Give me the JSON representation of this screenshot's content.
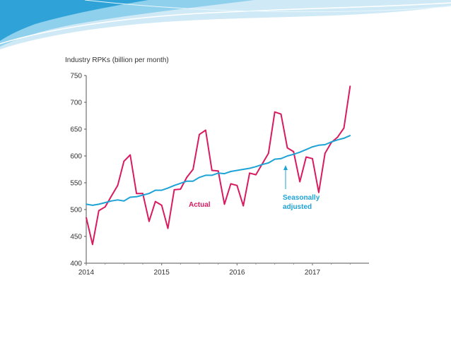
{
  "colors": {
    "actual": "#d81b60",
    "seasonally_adjusted": "#1ea3d6",
    "swoosh_light": "#cfeaf6",
    "swoosh_mid": "#8fd0ec",
    "swoosh_dark": "#2fa3d7"
  },
  "chart_data": {
    "type": "line",
    "title": "Industry RPKs (billion per month)",
    "xlabel": "",
    "ylabel": "",
    "xlim": [
      2014.0,
      2017.75
    ],
    "ylim": [
      400,
      750
    ],
    "x_ticks": [
      "2014",
      "2015",
      "2016",
      "2017"
    ],
    "y_ticks": [
      "750",
      "700",
      "650",
      "600",
      "550",
      "500",
      "450",
      "400"
    ],
    "grid": false,
    "annotations": {
      "actual": "Actual",
      "seasonally_adjusted_line1": "Seasonally",
      "seasonally_adjusted_line2": "adjusted"
    },
    "series": [
      {
        "key": "actual",
        "x": [
          2014.0,
          2014.083,
          2014.167,
          2014.25,
          2014.333,
          2014.417,
          2014.5,
          2014.583,
          2014.667,
          2014.75,
          2014.833,
          2014.917,
          2015.0,
          2015.083,
          2015.167,
          2015.25,
          2015.333,
          2015.417,
          2015.5,
          2015.583,
          2015.667,
          2015.75,
          2015.833,
          2015.917,
          2016.0,
          2016.083,
          2016.167,
          2016.25,
          2016.333,
          2016.417,
          2016.5,
          2016.583,
          2016.667,
          2016.75,
          2016.833,
          2016.917,
          2017.0,
          2017.083,
          2017.167,
          2017.25,
          2017.333,
          2017.417,
          2017.5
        ],
        "values": [
          485,
          435,
          498,
          505,
          525,
          545,
          590,
          602,
          530,
          530,
          478,
          515,
          508,
          465,
          537,
          538,
          560,
          575,
          640,
          648,
          573,
          572,
          510,
          548,
          545,
          507,
          568,
          565,
          585,
          605,
          682,
          678,
          615,
          608,
          552,
          598,
          595,
          532,
          605,
          625,
          635,
          652,
          730
        ]
      },
      {
        "key": "seasonally_adjusted",
        "x": [
          2014.0,
          2014.083,
          2014.167,
          2014.25,
          2014.333,
          2014.417,
          2014.5,
          2014.583,
          2014.667,
          2014.75,
          2014.833,
          2014.917,
          2015.0,
          2015.083,
          2015.167,
          2015.25,
          2015.333,
          2015.417,
          2015.5,
          2015.583,
          2015.667,
          2015.75,
          2015.833,
          2015.917,
          2016.0,
          2016.083,
          2016.167,
          2016.25,
          2016.333,
          2016.417,
          2016.5,
          2016.583,
          2016.667,
          2016.75,
          2016.833,
          2016.917,
          2017.0,
          2017.083,
          2017.167,
          2017.25,
          2017.333,
          2017.417,
          2017.5
        ],
        "values": [
          510,
          508,
          510,
          513,
          516,
          518,
          516,
          523,
          524,
          527,
          530,
          536,
          536,
          540,
          545,
          549,
          553,
          553,
          560,
          564,
          564,
          568,
          567,
          571,
          573,
          575,
          577,
          580,
          584,
          587,
          594,
          595,
          600,
          603,
          607,
          612,
          617,
          620,
          621,
          626,
          630,
          633,
          638
        ]
      }
    ]
  }
}
